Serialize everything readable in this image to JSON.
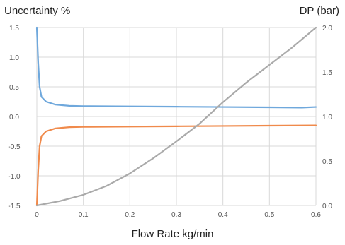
{
  "chart_data": {
    "type": "line",
    "title": "",
    "xlabel": "Flow Rate kg/min",
    "ylabel_left": "Uncertainty %",
    "ylabel_right": "DP (bar)",
    "xlim": [
      0,
      0.6
    ],
    "ylim_left": [
      -1.5,
      1.5
    ],
    "ylim_right": [
      0,
      2.0
    ],
    "x_ticks": [
      "0",
      "0.1",
      "0.2",
      "0.3",
      "0.4",
      "0.5",
      "0.6"
    ],
    "y_ticks_left": [
      "1.5",
      "1.0",
      "0.5",
      "0.0",
      "-0.5",
      "-1.0",
      "-1.5"
    ],
    "y_ticks_right": [
      "2.0",
      "1.5",
      "1.0",
      "0.5",
      "0.0"
    ],
    "grid": true,
    "series": [
      {
        "color": "#6FA8DC",
        "axis": "left",
        "points": [
          [
            0.0,
            1.5
          ],
          [
            0.003,
            0.9
          ],
          [
            0.006,
            0.5
          ],
          [
            0.01,
            0.33
          ],
          [
            0.02,
            0.25
          ],
          [
            0.04,
            0.2
          ],
          [
            0.07,
            0.18
          ],
          [
            0.1,
            0.175
          ],
          [
            0.2,
            0.17
          ],
          [
            0.3,
            0.165
          ],
          [
            0.4,
            0.16
          ],
          [
            0.5,
            0.155
          ],
          [
            0.57,
            0.15
          ],
          [
            0.6,
            0.16
          ]
        ]
      },
      {
        "color": "#F08A4B",
        "axis": "left",
        "points": [
          [
            0.0,
            -1.5
          ],
          [
            0.003,
            -0.9
          ],
          [
            0.006,
            -0.5
          ],
          [
            0.01,
            -0.33
          ],
          [
            0.02,
            -0.25
          ],
          [
            0.04,
            -0.2
          ],
          [
            0.07,
            -0.18
          ],
          [
            0.1,
            -0.175
          ],
          [
            0.2,
            -0.17
          ],
          [
            0.3,
            -0.165
          ],
          [
            0.4,
            -0.16
          ],
          [
            0.5,
            -0.155
          ],
          [
            0.6,
            -0.15
          ]
        ]
      },
      {
        "color": "#AAAAAA",
        "axis": "right",
        "points": [
          [
            0.0,
            0.0
          ],
          [
            0.05,
            0.05
          ],
          [
            0.1,
            0.12
          ],
          [
            0.15,
            0.22
          ],
          [
            0.2,
            0.36
          ],
          [
            0.25,
            0.53
          ],
          [
            0.3,
            0.72
          ],
          [
            0.35,
            0.92
          ],
          [
            0.4,
            1.16
          ],
          [
            0.45,
            1.38
          ],
          [
            0.5,
            1.58
          ],
          [
            0.55,
            1.78
          ],
          [
            0.6,
            2.0
          ]
        ]
      }
    ]
  }
}
